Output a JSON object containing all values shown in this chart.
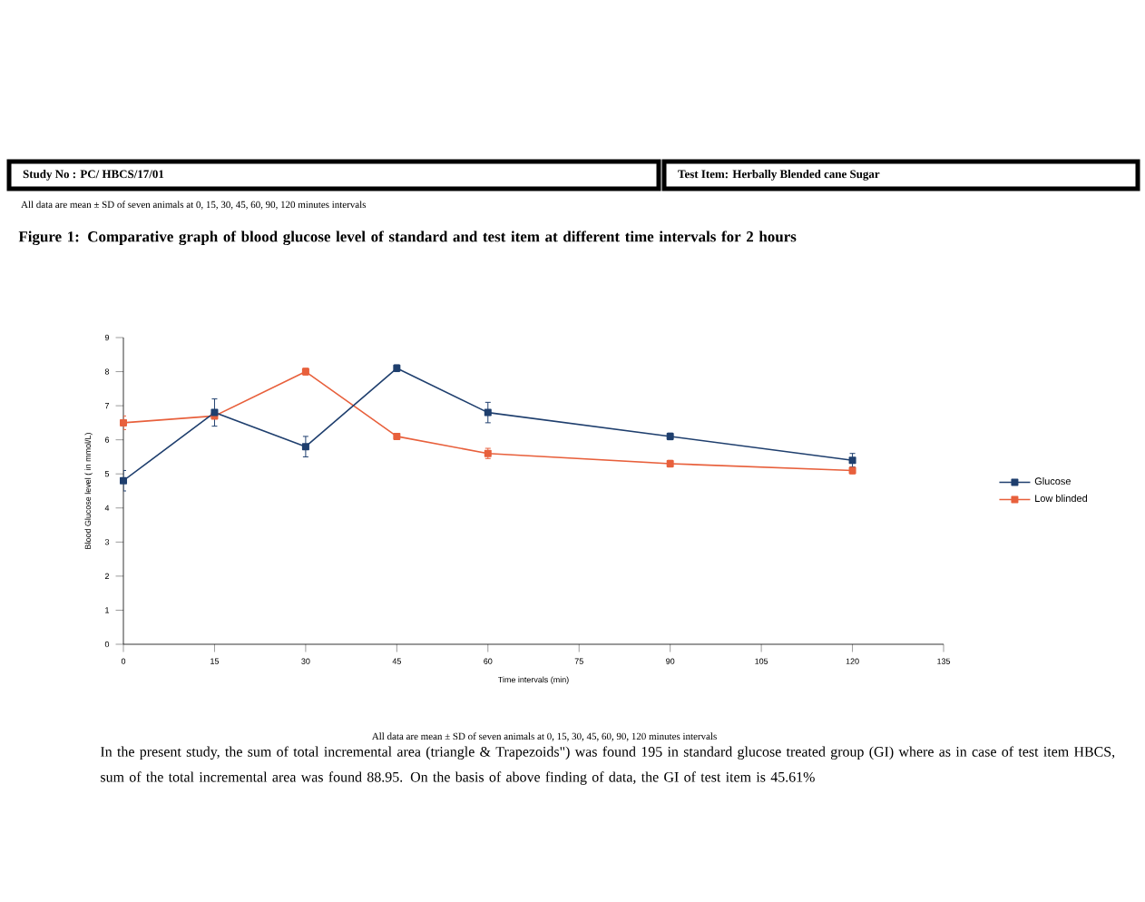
{
  "chart_data": {
    "type": "line",
    "title": "Figure 1: Comparative graph of blood glucose level of standard and test item at different time intervals for 2 hours",
    "xlabel": "Time intervals (min)",
    "ylabel": "Blood Glucose level ( in mmol/L)",
    "x": [
      0,
      15,
      30,
      45,
      60,
      90,
      120
    ],
    "series": [
      {
        "name": "Glucose",
        "color": "#1f3f6e",
        "values": [
          4.8,
          6.8,
          5.8,
          8.1,
          6.8,
          6.1,
          5.4
        ],
        "errors": [
          0.3,
          0.4,
          0.3,
          0.1,
          0.3,
          0.1,
          0.2
        ]
      },
      {
        "name": "Low blinded",
        "color": "#e8603c",
        "values": [
          6.5,
          6.7,
          8.0,
          6.1,
          5.6,
          5.3,
          5.1
        ],
        "errors": [
          0.2,
          null,
          0.1,
          0.05,
          0.15,
          0.1,
          0.1
        ]
      }
    ],
    "xlim": [
      0,
      135
    ],
    "xticks": [
      0,
      15,
      30,
      45,
      60,
      75,
      90,
      105,
      120,
      135
    ],
    "ylim": [
      0,
      9
    ],
    "yticks": [
      0,
      1,
      2,
      3,
      4,
      5,
      6,
      7,
      8,
      9
    ],
    "grid": false,
    "legend": "right",
    "marker": "square",
    "line_style": "solid",
    "annotations": [
      "Study No : PC/ HBCS/17/01",
      "Test Item: Herbally Blended cane Sugar",
      "All data are mean ± SD of seven animals at 0, 15, 30, 45, 60, 90, 120 minutes intervals",
      "All data are mean ± SD of seven animals at 0, 15, 30, 45, 60, 90, 120 minutes intervals",
      "In the present study, the sum of total incremental area (triangle & Trapezoids\") was found 195 in standard glucose treated group (GI) where as in case of test item HBCS, sum of the total incremental area was found 88.95. On the basis of above finding of data, the GI of test item is 45.61%"
    ]
  }
}
